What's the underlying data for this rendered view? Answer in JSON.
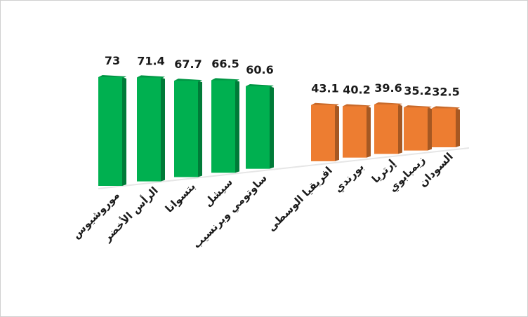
{
  "chart_data": {
    "type": "bar",
    "categories": [
      "موروشيوس",
      "الرأس الأخضر",
      "بتسوانا",
      "سيشل",
      "ساوتومي وبرنسيب",
      "افريقيا الوسطى",
      "بورندي",
      "إرتريا",
      "زيمبابوي",
      "السودان"
    ],
    "values": [
      73,
      71.4,
      67.7,
      66.5,
      60.6,
      43.1,
      40.2,
      39.6,
      35.2,
      32.5
    ],
    "colors": [
      "#00b050",
      "#00b050",
      "#00b050",
      "#00b050",
      "#00b050",
      "#ed7d31",
      "#ed7d31",
      "#ed7d31",
      "#ed7d31",
      "#ed7d31"
    ]
  }
}
